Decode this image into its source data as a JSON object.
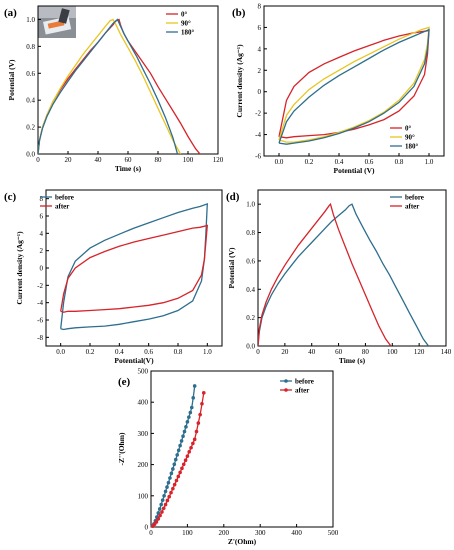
{
  "chart_data": [
    {
      "panel": "(a)",
      "type": "line",
      "xlabel": "Time (s)",
      "ylabel": "Potential (V)",
      "xlim": [
        0,
        120
      ],
      "ylim": [
        0,
        1.1
      ],
      "xticks": [
        0,
        20,
        40,
        60,
        80,
        100,
        120
      ],
      "yticks": [
        0.0,
        0.2,
        0.4,
        0.6,
        0.8,
        1.0
      ],
      "legend_position": "top-right",
      "inset_photo": true,
      "series": [
        {
          "name": "0°",
          "color": "#d6242a",
          "x": [
            0,
            1,
            3,
            6,
            10,
            15,
            20,
            25,
            30,
            35,
            40,
            45,
            50,
            52,
            54,
            55,
            57,
            60,
            65,
            70,
            75,
            80,
            85,
            90,
            95,
            100,
            105,
            108
          ],
          "y": [
            0.0,
            0.1,
            0.2,
            0.29,
            0.39,
            0.48,
            0.56,
            0.63,
            0.7,
            0.77,
            0.83,
            0.9,
            0.96,
            0.99,
            1.0,
            0.96,
            0.9,
            0.84,
            0.76,
            0.68,
            0.6,
            0.5,
            0.41,
            0.32,
            0.23,
            0.13,
            0.04,
            0.0
          ]
        },
        {
          "name": "90°",
          "color": "#e8c620",
          "x": [
            0,
            1,
            3,
            6,
            10,
            15,
            20,
            25,
            30,
            35,
            40,
            45,
            48,
            50,
            52,
            55,
            60,
            65,
            70,
            75,
            80,
            85,
            90,
            95
          ],
          "y": [
            0.0,
            0.1,
            0.2,
            0.29,
            0.39,
            0.49,
            0.58,
            0.66,
            0.74,
            0.81,
            0.88,
            0.95,
            0.99,
            1.0,
            0.96,
            0.89,
            0.79,
            0.69,
            0.58,
            0.46,
            0.34,
            0.22,
            0.1,
            0.0
          ]
        },
        {
          "name": "180°",
          "color": "#2e6e8e",
          "x": [
            0,
            1,
            3,
            6,
            10,
            15,
            20,
            25,
            30,
            35,
            40,
            45,
            50,
            53,
            55,
            58,
            62,
            66,
            70,
            75,
            80,
            85,
            90,
            93
          ],
          "y": [
            0.0,
            0.1,
            0.19,
            0.28,
            0.37,
            0.46,
            0.54,
            0.62,
            0.69,
            0.76,
            0.83,
            0.9,
            0.97,
            1.0,
            0.95,
            0.88,
            0.8,
            0.72,
            0.63,
            0.52,
            0.4,
            0.27,
            0.12,
            0.0
          ]
        }
      ]
    },
    {
      "panel": "(b)",
      "type": "line",
      "xlabel": "Potential (V)",
      "ylabel": "Current density (Ag⁻¹)",
      "xlim": [
        -0.1,
        1.1
      ],
      "ylim": [
        -6,
        8
      ],
      "xticks": [
        0.0,
        0.2,
        0.4,
        0.6,
        0.8,
        1.0
      ],
      "yticks": [
        -6,
        -4,
        -2,
        0,
        2,
        4,
        6,
        8
      ],
      "legend_position": "bottom-right",
      "series": [
        {
          "name": "0°",
          "color": "#d6242a",
          "x": [
            0.0,
            0.05,
            0.1,
            0.2,
            0.3,
            0.4,
            0.5,
            0.6,
            0.7,
            0.8,
            0.9,
            0.95,
            1.0,
            0.99,
            0.97,
            0.9,
            0.8,
            0.7,
            0.6,
            0.5,
            0.4,
            0.3,
            0.2,
            0.1,
            0.05,
            0.0
          ],
          "y": [
            -4.2,
            -0.8,
            0.5,
            1.8,
            2.6,
            3.2,
            3.8,
            4.3,
            4.8,
            5.2,
            5.5,
            5.6,
            5.7,
            3.5,
            1.6,
            -0.4,
            -1.8,
            -2.6,
            -3.1,
            -3.5,
            -3.8,
            -4.0,
            -4.1,
            -4.2,
            -4.3,
            -4.2
          ]
        },
        {
          "name": "90°",
          "color": "#e8c620",
          "x": [
            0.0,
            0.05,
            0.1,
            0.2,
            0.3,
            0.4,
            0.5,
            0.6,
            0.7,
            0.8,
            0.9,
            0.95,
            1.0,
            0.99,
            0.97,
            0.9,
            0.8,
            0.7,
            0.6,
            0.5,
            0.4,
            0.3,
            0.2,
            0.1,
            0.05,
            0.0
          ],
          "y": [
            -4.5,
            -2.2,
            -1.2,
            0.2,
            1.2,
            2.0,
            2.8,
            3.5,
            4.2,
            4.9,
            5.5,
            5.8,
            6.0,
            4.5,
            3.0,
            0.8,
            -0.8,
            -1.9,
            -2.7,
            -3.3,
            -3.8,
            -4.2,
            -4.5,
            -4.7,
            -4.7,
            -4.5
          ]
        },
        {
          "name": "180°",
          "color": "#2e6e8e",
          "x": [
            0.0,
            0.05,
            0.1,
            0.2,
            0.3,
            0.4,
            0.5,
            0.6,
            0.7,
            0.8,
            0.9,
            0.95,
            1.0,
            0.99,
            0.97,
            0.9,
            0.8,
            0.7,
            0.6,
            0.5,
            0.4,
            0.3,
            0.2,
            0.1,
            0.05,
            0.0
          ],
          "y": [
            -4.8,
            -2.8,
            -1.8,
            -0.5,
            0.6,
            1.5,
            2.3,
            3.1,
            3.9,
            4.6,
            5.2,
            5.5,
            5.8,
            4.0,
            2.6,
            0.5,
            -1.0,
            -2.0,
            -2.8,
            -3.4,
            -3.9,
            -4.3,
            -4.6,
            -4.8,
            -4.9,
            -4.8
          ]
        }
      ]
    },
    {
      "panel": "(c)",
      "type": "line",
      "xlabel": "Potential(V)",
      "ylabel": "Current density (Ag⁻¹)",
      "xlim": [
        -0.1,
        1.1
      ],
      "ylim": [
        -9,
        9
      ],
      "xticks": [
        0.0,
        0.2,
        0.4,
        0.6,
        0.8,
        1.0
      ],
      "yticks": [
        -8,
        -6,
        -4,
        -2,
        0,
        2,
        4,
        6,
        8
      ],
      "legend_position": "top-left",
      "series": [
        {
          "name": "before",
          "color": "#2e6e8e",
          "x": [
            0.0,
            0.02,
            0.05,
            0.1,
            0.2,
            0.3,
            0.4,
            0.5,
            0.6,
            0.7,
            0.8,
            0.9,
            0.95,
            1.0,
            0.99,
            0.98,
            0.96,
            0.9,
            0.8,
            0.7,
            0.6,
            0.5,
            0.4,
            0.3,
            0.2,
            0.1,
            0.05,
            0.02,
            0.0
          ],
          "y": [
            -7.0,
            -4.0,
            -1.0,
            0.8,
            2.3,
            3.2,
            3.9,
            4.6,
            5.2,
            5.8,
            6.4,
            6.9,
            7.1,
            7.4,
            4.0,
            1.0,
            -1.5,
            -3.8,
            -4.9,
            -5.5,
            -5.9,
            -6.2,
            -6.5,
            -6.7,
            -6.8,
            -6.9,
            -7.0,
            -7.1,
            -7.0
          ]
        },
        {
          "name": "after",
          "color": "#d6242a",
          "x": [
            0.0,
            0.02,
            0.05,
            0.1,
            0.2,
            0.3,
            0.4,
            0.5,
            0.6,
            0.7,
            0.8,
            0.9,
            0.95,
            1.0,
            0.99,
            0.98,
            0.96,
            0.9,
            0.8,
            0.7,
            0.6,
            0.5,
            0.4,
            0.3,
            0.2,
            0.1,
            0.05,
            0.02,
            0.0
          ],
          "y": [
            -5.0,
            -3.0,
            -1.2,
            0.0,
            1.2,
            1.9,
            2.5,
            3.0,
            3.4,
            3.8,
            4.2,
            4.6,
            4.7,
            4.9,
            3.0,
            1.0,
            -0.8,
            -2.6,
            -3.5,
            -4.0,
            -4.3,
            -4.5,
            -4.7,
            -4.8,
            -4.9,
            -5.0,
            -5.0,
            -5.1,
            -5.0
          ]
        }
      ]
    },
    {
      "panel": "(d)",
      "type": "line",
      "xlabel": "Time (s)",
      "ylabel": "Potential (V)",
      "xlim": [
        0,
        140
      ],
      "ylim": [
        0,
        1.1
      ],
      "xticks": [
        0,
        20,
        40,
        60,
        80,
        100,
        120,
        140
      ],
      "yticks": [
        0.0,
        0.2,
        0.4,
        0.6,
        0.8,
        1.0
      ],
      "legend_position": "top-right",
      "series": [
        {
          "name": "before",
          "color": "#2e6e8e",
          "x": [
            0,
            1,
            3,
            6,
            10,
            15,
            20,
            25,
            30,
            35,
            40,
            45,
            50,
            55,
            60,
            65,
            68,
            70,
            73,
            78,
            83,
            88,
            93,
            98,
            103,
            108,
            113,
            118,
            123,
            127
          ],
          "y": [
            0.0,
            0.1,
            0.2,
            0.28,
            0.36,
            0.44,
            0.51,
            0.57,
            0.63,
            0.68,
            0.73,
            0.78,
            0.83,
            0.88,
            0.92,
            0.96,
            0.99,
            1.0,
            0.93,
            0.84,
            0.75,
            0.67,
            0.58,
            0.5,
            0.41,
            0.32,
            0.23,
            0.14,
            0.05,
            0.0
          ]
        },
        {
          "name": "after",
          "color": "#d6242a",
          "x": [
            0,
            1,
            3,
            6,
            10,
            15,
            20,
            25,
            30,
            35,
            40,
            45,
            50,
            53,
            54,
            56,
            60,
            65,
            70,
            75,
            80,
            85,
            90,
            95,
            99
          ],
          "y": [
            0.0,
            0.12,
            0.22,
            0.31,
            0.4,
            0.49,
            0.57,
            0.64,
            0.71,
            0.77,
            0.83,
            0.89,
            0.95,
            0.99,
            1.0,
            0.93,
            0.82,
            0.7,
            0.58,
            0.47,
            0.36,
            0.25,
            0.14,
            0.05,
            0.0
          ]
        }
      ]
    },
    {
      "panel": "(e)",
      "type": "line",
      "xlabel": "Z'(Ohm)",
      "ylabel": "-Z''(Ohm)",
      "xlim": [
        0,
        500
      ],
      "ylim": [
        0,
        500
      ],
      "xticks": [
        0,
        100,
        200,
        300,
        400,
        500
      ],
      "yticks": [
        0,
        100,
        200,
        300,
        400,
        500
      ],
      "legend_position": "top-right",
      "markers": "circle",
      "series": [
        {
          "name": "before",
          "color": "#2e6e8e",
          "x": [
            4,
            8,
            12,
            16,
            20,
            24,
            28,
            32,
            36,
            40,
            44,
            48,
            52,
            56,
            60,
            64,
            68,
            72,
            76,
            80,
            84,
            88,
            92,
            96,
            100,
            104,
            108,
            112,
            116,
            120
          ],
          "y": [
            3,
            10,
            20,
            32,
            45,
            58,
            72,
            86,
            100,
            114,
            128,
            142,
            157,
            172,
            186,
            201,
            216,
            231,
            246,
            261,
            276,
            291,
            306,
            321,
            337,
            352,
            367,
            383,
            414,
            452
          ]
        },
        {
          "name": "after",
          "color": "#d6242a",
          "x": [
            5,
            10,
            15,
            20,
            25,
            30,
            35,
            40,
            45,
            50,
            55,
            60,
            65,
            70,
            75,
            80,
            85,
            90,
            95,
            100,
            105,
            110,
            115,
            120,
            125,
            130,
            135,
            140,
            145
          ],
          "y": [
            3,
            9,
            16,
            26,
            37,
            48,
            60,
            72,
            85,
            97,
            110,
            123,
            136,
            149,
            162,
            175,
            188,
            201,
            214,
            227,
            241,
            254,
            268,
            281,
            306,
            333,
            360,
            395,
            430
          ]
        }
      ]
    }
  ]
}
